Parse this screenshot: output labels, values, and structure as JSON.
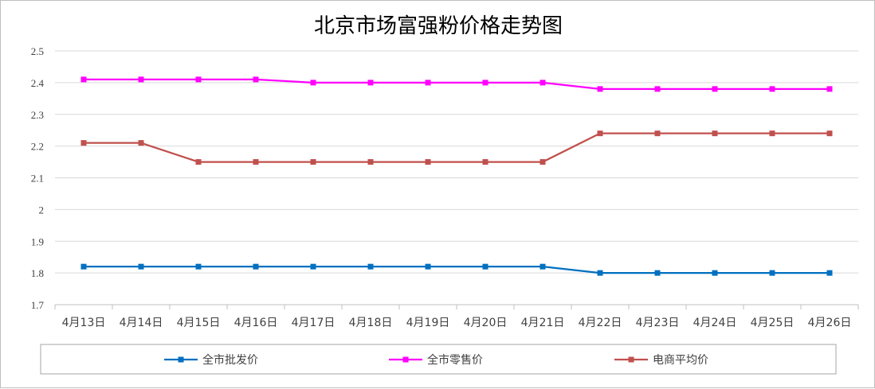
{
  "chart_data": {
    "type": "line",
    "title": "北京市场富强粉价格走势图",
    "xlabel": "",
    "ylabel": "",
    "categories": [
      "4月13日",
      "4月14日",
      "4月15日",
      "4月16日",
      "4月17日",
      "4月18日",
      "4月19日",
      "4月20日",
      "4月21日",
      "4月22日",
      "4月23日",
      "4月24日",
      "4月25日",
      "4月26日"
    ],
    "ylim": [
      1.7,
      2.5
    ],
    "yticks": [
      "1.7",
      "1.8",
      "1.9",
      "2",
      "2.1",
      "2.2",
      "2.3",
      "2.4",
      "2.5"
    ],
    "grid": true,
    "legend_position": "bottom",
    "series": [
      {
        "name": "全市批发价",
        "color": "#0070c0",
        "marker": "square",
        "values": [
          1.82,
          1.82,
          1.82,
          1.82,
          1.82,
          1.82,
          1.82,
          1.82,
          1.82,
          1.8,
          1.8,
          1.8,
          1.8,
          1.8
        ]
      },
      {
        "name": "全市零售价",
        "color": "#ff00ff",
        "marker": "square",
        "values": [
          2.41,
          2.41,
          2.41,
          2.41,
          2.4,
          2.4,
          2.4,
          2.4,
          2.4,
          2.38,
          2.38,
          2.38,
          2.38,
          2.38
        ]
      },
      {
        "name": "电商平均价",
        "color": "#c0504d",
        "marker": "square",
        "values": [
          2.21,
          2.21,
          2.15,
          2.15,
          2.15,
          2.15,
          2.15,
          2.15,
          2.15,
          2.24,
          2.24,
          2.24,
          2.24,
          2.24
        ]
      }
    ]
  }
}
